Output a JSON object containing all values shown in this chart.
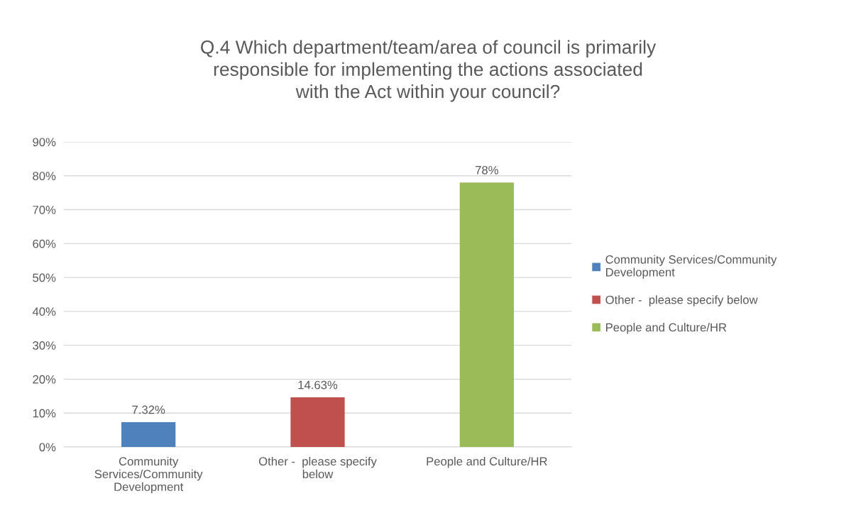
{
  "chart_data": {
    "type": "bar",
    "title": "Q.4 Which department/team/area of council is primarily responsible for implementing the actions associated with the Act within your council?",
    "categories": [
      "Community Services/Community Development",
      "Other -  please specify below",
      "People and Culture/HR"
    ],
    "stacked": true,
    "series": [
      {
        "name": "Community Services/Community Development",
        "color": "#4f81bd",
        "values": [
          7.32,
          null,
          null
        ],
        "value_labels": [
          "7.32%",
          null,
          null
        ]
      },
      {
        "name": "Other -  please specify below",
        "color": "#c0504d",
        "values": [
          null,
          14.63,
          null
        ],
        "value_labels": [
          null,
          "14.63%",
          null
        ]
      },
      {
        "name": "People and Culture/HR",
        "color": "#9bbb59",
        "values": [
          null,
          null,
          78
        ],
        "value_labels": [
          null,
          null,
          "78%"
        ]
      }
    ],
    "ylim": [
      0,
      90
    ],
    "yticks": [
      {
        "value": 0,
        "label": "0%"
      },
      {
        "value": 10,
        "label": "10%"
      },
      {
        "value": 20,
        "label": "20%"
      },
      {
        "value": 30,
        "label": "30%"
      },
      {
        "value": 40,
        "label": "40%"
      },
      {
        "value": 50,
        "label": "50%"
      },
      {
        "value": 60,
        "label": "60%"
      },
      {
        "value": 70,
        "label": "70%"
      },
      {
        "value": 80,
        "label": "80%"
      },
      {
        "value": 90,
        "label": "90%"
      }
    ],
    "grid": "y",
    "legend": "right"
  }
}
